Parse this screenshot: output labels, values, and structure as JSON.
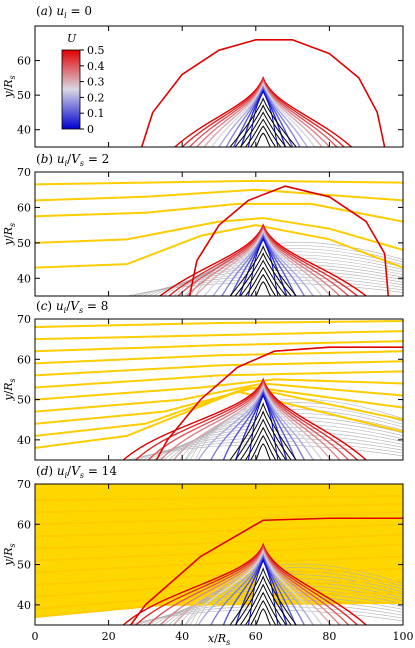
{
  "chart_data": {
    "type": "line",
    "xlabel": "x/R_s",
    "x_ticks": [
      "0",
      "20",
      "40",
      "60",
      "80",
      "100"
    ],
    "xlim": [
      0,
      100
    ],
    "colorbar": {
      "title": "U",
      "ticks": [
        "0.5",
        "0.4",
        "0.3",
        "0.2",
        "0.1",
        "0"
      ],
      "range": [
        0,
        0.5
      ],
      "colors": [
        "#0000d0",
        "#d8d8e4",
        "#e00000"
      ]
    },
    "colors": {
      "streamline": "#ffcc00",
      "fill": "#ffd700",
      "boundary": "#e00000",
      "gray": "#b0b0b0",
      "core": "#000000"
    },
    "panels": [
      {
        "title": "(a) u_i = 0",
        "ylabel": "y/R_s",
        "ylim": [
          35,
          70
        ],
        "y_ticks": [
          "40",
          "50",
          "60"
        ],
        "ui_over_vs": 0,
        "boundary": [
          [
            29,
            35
          ],
          [
            32,
            45
          ],
          [
            40,
            56
          ],
          [
            50,
            63
          ],
          [
            60,
            66
          ],
          [
            70,
            66
          ],
          [
            80,
            62
          ],
          [
            88,
            55
          ],
          [
            93,
            45
          ],
          [
            95,
            35
          ]
        ],
        "streamlines": []
      },
      {
        "title": "(b) u_i/V_s = 2",
        "ylabel": "y/R_s",
        "ylim": [
          35,
          70
        ],
        "y_ticks": [
          "40",
          "50",
          "60",
          "70"
        ],
        "ui_over_vs": 2,
        "boundary": [
          [
            42,
            35
          ],
          [
            44,
            45
          ],
          [
            50,
            55
          ],
          [
            58,
            62
          ],
          [
            68,
            66
          ],
          [
            80,
            63
          ],
          [
            90,
            56
          ],
          [
            95,
            47
          ],
          [
            96,
            35
          ]
        ],
        "streamlines": [
          [
            [
              0,
              66.5
            ],
            [
              30,
              67
            ],
            [
              60,
              67.5
            ],
            [
              100,
              67
            ]
          ],
          [
            [
              0,
              62
            ],
            [
              30,
              63
            ],
            [
              60,
              65
            ],
            [
              100,
              62
            ]
          ],
          [
            [
              0,
              57.5
            ],
            [
              30,
              58.5
            ],
            [
              55,
              61
            ],
            [
              75,
              61
            ],
            [
              100,
              56
            ]
          ],
          [
            [
              0,
              50
            ],
            [
              25,
              51
            ],
            [
              50,
              56
            ],
            [
              62,
              57
            ],
            [
              80,
              54
            ],
            [
              100,
              48
            ]
          ],
          [
            [
              0,
              43
            ],
            [
              25,
              44
            ],
            [
              45,
              52
            ],
            [
              60,
              55
            ],
            [
              80,
              51
            ],
            [
              100,
              43
            ]
          ]
        ]
      },
      {
        "title": "(c) u_i/V_s = 8",
        "ylabel": "y/R_s",
        "ylim": [
          35,
          70
        ],
        "y_ticks": [
          "40",
          "50",
          "60",
          "70"
        ],
        "ui_over_vs": 8,
        "boundary": [
          [
            33,
            35
          ],
          [
            36,
            40
          ],
          [
            45,
            50
          ],
          [
            55,
            58
          ],
          [
            65,
            62
          ],
          [
            80,
            63
          ],
          [
            100,
            63
          ]
        ],
        "streamlines": [
          [
            [
              0,
              68
            ],
            [
              50,
              69
            ],
            [
              100,
              69.5
            ]
          ],
          [
            [
              0,
              65
            ],
            [
              50,
              66
            ],
            [
              100,
              67
            ]
          ],
          [
            [
              0,
              62
            ],
            [
              50,
              63.5
            ],
            [
              100,
              64.5
            ]
          ],
          [
            [
              0,
              59
            ],
            [
              50,
              61
            ],
            [
              100,
              62
            ]
          ],
          [
            [
              0,
              56
            ],
            [
              50,
              58.5
            ],
            [
              100,
              59.5
            ]
          ],
          [
            [
              0,
              53
            ],
            [
              50,
              56
            ],
            [
              100,
              57
            ]
          ],
          [
            [
              0,
              50
            ],
            [
              45,
              53
            ],
            [
              65,
              55
            ],
            [
              100,
              54
            ]
          ],
          [
            [
              0,
              47
            ],
            [
              40,
              50
            ],
            [
              62,
              54
            ],
            [
              100,
              51
            ]
          ],
          [
            [
              0,
              44
            ],
            [
              35,
              47
            ],
            [
              60,
              53
            ],
            [
              100,
              48
            ]
          ],
          [
            [
              0,
              41
            ],
            [
              30,
              44
            ],
            [
              58,
              53
            ],
            [
              100,
              45
            ]
          ],
          [
            [
              0,
              38
            ],
            [
              25,
              41
            ],
            [
              55,
              52
            ],
            [
              100,
              42
            ]
          ]
        ]
      },
      {
        "title": "(d) u_i/V_s = 14",
        "ylabel": "y/R_s",
        "ylim": [
          35,
          70
        ],
        "y_ticks": [
          "40",
          "50",
          "60",
          "70"
        ],
        "ui_over_vs": 14,
        "boundary": [
          [
            26,
            35
          ],
          [
            30,
            40
          ],
          [
            45,
            52
          ],
          [
            62,
            61
          ],
          [
            80,
            61.5
          ],
          [
            100,
            61.5
          ]
        ],
        "streamlines": [
          [
            [
              0,
              66
            ],
            [
              50,
              66.5
            ],
            [
              100,
              67
            ]
          ],
          [
            [
              0,
              63
            ],
            [
              50,
              64
            ],
            [
              100,
              65
            ]
          ],
          [
            [
              0,
              60
            ],
            [
              40,
              61
            ],
            [
              100,
              63
            ]
          ],
          [
            [
              0,
              57
            ],
            [
              40,
              58
            ],
            [
              100,
              60
            ]
          ],
          [
            [
              0,
              54
            ],
            [
              40,
              55
            ],
            [
              100,
              57.5
            ]
          ],
          [
            [
              0,
              51
            ],
            [
              40,
              52.5
            ],
            [
              100,
              55
            ]
          ],
          [
            [
              0,
              48
            ],
            [
              40,
              50
            ],
            [
              100,
              52
            ]
          ],
          [
            [
              0,
              45
            ],
            [
              40,
              47
            ],
            [
              100,
              49
            ]
          ],
          [
            [
              0,
              42
            ],
            [
              40,
              44.5
            ],
            [
              100,
              46
            ]
          ],
          [
            [
              0,
              39
            ],
            [
              40,
              42
            ],
            [
              100,
              43
            ]
          ],
          [
            [
              0,
              37
            ],
            [
              35,
              40
            ],
            [
              100,
              40.5
            ]
          ]
        ]
      }
    ]
  }
}
